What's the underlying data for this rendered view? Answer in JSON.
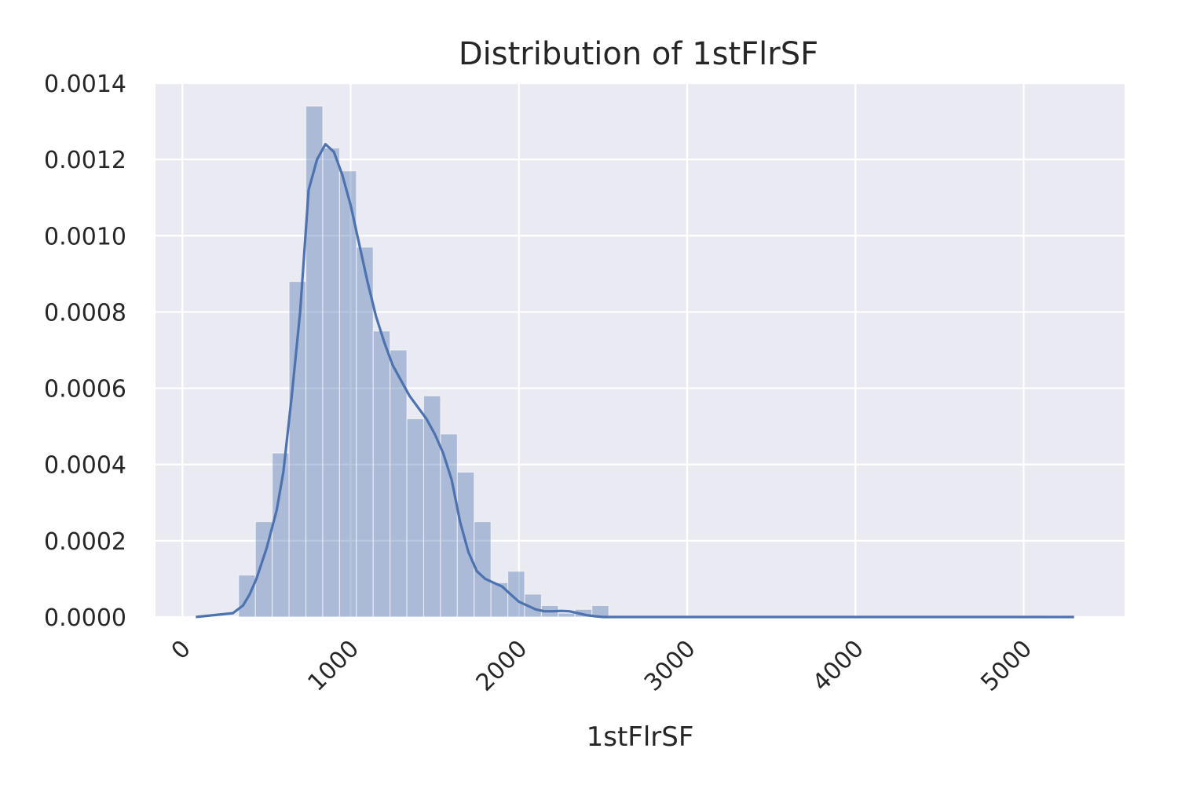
{
  "chart_data": {
    "type": "bar",
    "title": "Distribution of 1stFlrSF",
    "xlabel": "1stFlrSF",
    "ylabel": "",
    "xlim": [
      -160,
      5600
    ],
    "ylim": [
      0,
      0.0014
    ],
    "grid": true,
    "background": "#eaeaf2",
    "bar_color": "#4c72b0",
    "line_color": "#4c72b0",
    "x_ticks": [
      "0",
      "1000",
      "2000",
      "3000",
      "4000",
      "5000"
    ],
    "x_tick_values": [
      0,
      1000,
      2000,
      3000,
      4000,
      5000
    ],
    "y_ticks": [
      "0.0000",
      "0.0002",
      "0.0004",
      "0.0006",
      "0.0008",
      "0.0010",
      "0.0012",
      "0.0014"
    ],
    "y_tick_values": [
      0,
      0.0002,
      0.0004,
      0.0006,
      0.0008,
      0.001,
      0.0012,
      0.0014
    ],
    "histogram": {
      "bin_edges": [
        334,
        434,
        534,
        634,
        734,
        834,
        934,
        1034,
        1134,
        1234,
        1334,
        1434,
        1534,
        1634,
        1734,
        1834,
        1934,
        2034,
        2134,
        2234,
        2334,
        2434,
        2534,
        2634,
        2734,
        2834,
        2934,
        3034,
        3134,
        3234,
        3334,
        3434,
        3534,
        3634,
        3734,
        3834,
        3934,
        4034,
        4134,
        4234,
        4334,
        4434,
        4534,
        4634,
        4734,
        4834,
        4934,
        5034,
        5134,
        5234
      ],
      "values": [
        0.00011,
        0.00025,
        0.00043,
        0.00088,
        0.00134,
        0.00123,
        0.00117,
        0.00097,
        0.00075,
        0.0007,
        0.00052,
        0.00058,
        0.00048,
        0.00038,
        0.00025,
        9e-05,
        0.00012,
        6e-05,
        3e-05,
        1e-05,
        2e-05,
        3e-05,
        0,
        0,
        0,
        0,
        0,
        0,
        0,
        0,
        0,
        0,
        0,
        0,
        0,
        0,
        0,
        0,
        0,
        0,
        0,
        0,
        0,
        0,
        0,
        0,
        0,
        0,
        3e-06
      ]
    },
    "kde": {
      "x": [
        80,
        300,
        360,
        400,
        440,
        500,
        560,
        600,
        650,
        700,
        750,
        800,
        850,
        900,
        950,
        1000,
        1050,
        1100,
        1150,
        1200,
        1250,
        1300,
        1350,
        1400,
        1450,
        1500,
        1550,
        1600,
        1650,
        1700,
        1750,
        1800,
        1850,
        1900,
        1950,
        2000,
        2050,
        2100,
        2150,
        2200,
        2250,
        2300,
        2350,
        2400,
        2450,
        2500,
        2600,
        2800,
        3000,
        3500,
        4000,
        4500,
        5000,
        5300
      ],
      "y": [
        0,
        1e-05,
        3e-05,
        6e-05,
        0.0001,
        0.00018,
        0.00028,
        0.00038,
        0.00058,
        0.0008,
        0.00112,
        0.0012,
        0.00124,
        0.00122,
        0.00116,
        0.00108,
        0.00098,
        0.00088,
        0.00079,
        0.00072,
        0.00066,
        0.00062,
        0.00058,
        0.00055,
        0.00052,
        0.00048,
        0.00043,
        0.00036,
        0.00025,
        0.00017,
        0.00012,
        0.0001,
        9e-05,
        8e-05,
        6e-05,
        4e-05,
        3e-05,
        2e-05,
        1.5e-05,
        1.5e-05,
        1.6e-05,
        1.5e-05,
        1e-05,
        5e-06,
        2e-06,
        0,
        0,
        0,
        0,
        0,
        0,
        0,
        0,
        0
      ]
    }
  }
}
